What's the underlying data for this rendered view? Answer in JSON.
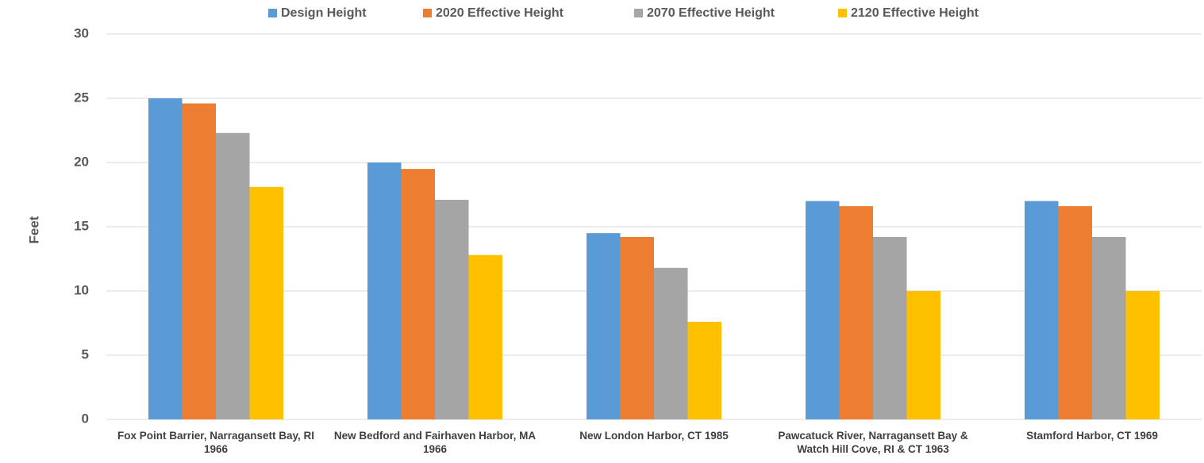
{
  "chart_data": {
    "type": "bar",
    "y_label": "Feet",
    "categories": [
      "Fox Point Barrier, Narragansett Bay, RI 1966",
      "New Bedford and Fairhaven Harbor, MA 1966",
      "New London Harbor, CT 1985",
      "Pawcatuck River, Narragansett Bay & Watch Hill Cove, RI & CT 1963",
      "Stamford Harbor, CT 1969"
    ],
    "series": [
      {
        "name": "Design Height",
        "color": "#5b9bd5",
        "values": [
          25,
          20,
          14.5,
          17,
          17
        ]
      },
      {
        "name": "2020 Effective Height",
        "color": "#ed7d31",
        "values": [
          24.6,
          19.5,
          14.2,
          16.6,
          16.6
        ]
      },
      {
        "name": "2070 Effective Height",
        "color": "#a5a5a5",
        "values": [
          22.3,
          17.1,
          11.8,
          14.2,
          14.2
        ]
      },
      {
        "name": "2120 Effective Height",
        "color": "#ffc000",
        "values": [
          18.1,
          12.8,
          7.6,
          10,
          10
        ]
      }
    ],
    "ylim": [
      0,
      30
    ],
    "yticks": [
      0,
      5,
      10,
      15,
      20,
      25,
      30
    ],
    "grid": true,
    "legend": "top"
  }
}
